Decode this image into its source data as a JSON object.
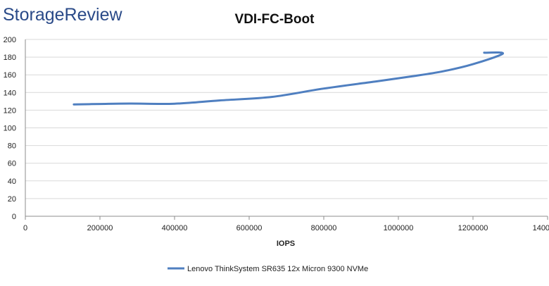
{
  "brand": {
    "text": "StorageReview"
  },
  "chart_data": {
    "type": "line",
    "title": "VDI-FC-Boot",
    "xlabel": "IOPS",
    "ylabel": "",
    "xlim": [
      0,
      1400000
    ],
    "ylim": [
      0,
      200
    ],
    "x_ticks": [
      0,
      200000,
      400000,
      600000,
      800000,
      1000000,
      1200000,
      1400000
    ],
    "y_ticks": [
      0,
      20,
      40,
      60,
      80,
      100,
      120,
      140,
      160,
      180,
      200
    ],
    "x_tick_labels": [
      "0",
      "200000",
      "400000",
      "600000",
      "800000",
      "1000000",
      "1200000",
      "1400000"
    ],
    "y_tick_labels": [
      "0",
      "20",
      "40",
      "60",
      "80",
      "100",
      "120",
      "140",
      "160",
      "180",
      "200"
    ],
    "grid": "horizontal",
    "legend": "bottom",
    "series": [
      {
        "name": "Lenovo ThinkSystem SR635 12x Micron 9300 NVMe",
        "color": "#4f7fc0",
        "x": [
          130000,
          200000,
          280000,
          400000,
          520000,
          660000,
          800000,
          940000,
          1040000,
          1120000,
          1200000,
          1280000,
          1230000
        ],
        "y": [
          126.5,
          127,
          127.5,
          127.3,
          131,
          135,
          144.5,
          152.5,
          158.5,
          164,
          172,
          184,
          185
        ]
      }
    ]
  }
}
